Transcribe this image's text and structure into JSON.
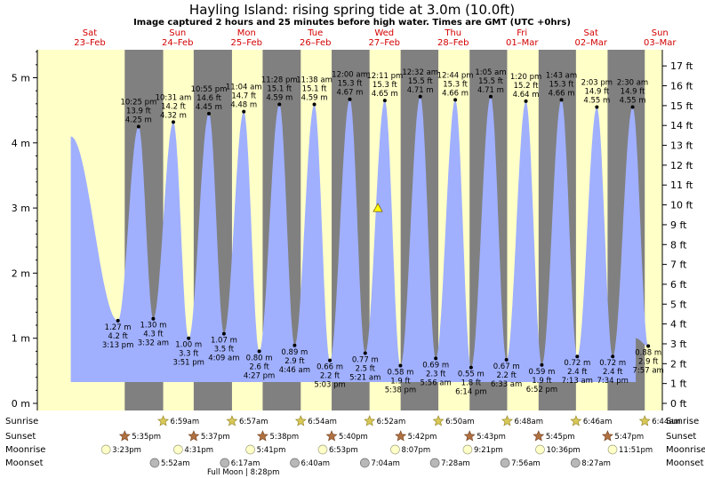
{
  "chart_data": {
    "type": "area",
    "title": "Hayling Island: rising  spring tide at 3.0m (10.0ft)",
    "subtitle": "Image captured 2 hours and 25 minutes before high water. Times are GMT (UTC +0hrs)",
    "ylabel_left_ticks": [
      "0 m",
      "1 m",
      "2 m",
      "3 m",
      "4 m",
      "5 m"
    ],
    "ylabel_right_ticks": [
      "0 ft",
      "1 ft",
      "2 ft",
      "3 ft",
      "4 ft",
      "5 ft",
      "6 ft",
      "7 ft",
      "8 ft",
      "9 ft",
      "10 ft",
      "11 ft",
      "12 ft",
      "13 ft",
      "14 ft",
      "15 ft",
      "16 ft",
      "17 ft"
    ],
    "ylim_m": [
      -0.05,
      5.45
    ],
    "days": [
      {
        "dow": "Sat",
        "date": "23–Feb"
      },
      {
        "dow": "Sun",
        "date": "24–Feb"
      },
      {
        "dow": "Mon",
        "date": "25–Feb"
      },
      {
        "dow": "Tue",
        "date": "26–Feb"
      },
      {
        "dow": "Wed",
        "date": "27–Feb"
      },
      {
        "dow": "Thu",
        "date": "28–Feb"
      },
      {
        "dow": "Fri",
        "date": "01–Mar"
      },
      {
        "dow": "Sat",
        "date": "02–Mar"
      },
      {
        "dow": "Sun",
        "date": "03–Mar"
      }
    ],
    "start_height_m": 4.1,
    "end_height_m": 1.0,
    "tides": [
      {
        "type": "low",
        "day": 0,
        "time": "3:13 pm",
        "h": 1.27,
        "m": "1.27 m",
        "ft": "4.2 ft"
      },
      {
        "type": "high",
        "day": 0,
        "time": "10:25 pm",
        "h": 4.25,
        "m": "4.25 m",
        "ft": "13.9 ft"
      },
      {
        "type": "low",
        "day": 1,
        "time": "3:32 am",
        "h": 1.3,
        "m": "1.30 m",
        "ft": "4.3 ft"
      },
      {
        "type": "high",
        "day": 1,
        "time": "10:31 am",
        "h": 4.32,
        "m": "4.32 m",
        "ft": "14.2 ft"
      },
      {
        "type": "low",
        "day": 1,
        "time": "3:51 pm",
        "h": 1.0,
        "m": "1.00 m",
        "ft": "3.3 ft"
      },
      {
        "type": "high",
        "day": 1,
        "time": "10:55 pm",
        "h": 4.45,
        "m": "4.45 m",
        "ft": "14.6 ft"
      },
      {
        "type": "low",
        "day": 2,
        "time": "4:09 am",
        "h": 1.07,
        "m": "1.07 m",
        "ft": "3.5 ft"
      },
      {
        "type": "high",
        "day": 2,
        "time": "11:04 am",
        "h": 4.48,
        "m": "4.48 m",
        "ft": "14.7 ft"
      },
      {
        "type": "low",
        "day": 2,
        "time": "4:27 pm",
        "h": 0.8,
        "m": "0.80 m",
        "ft": "2.6 ft"
      },
      {
        "type": "high",
        "day": 2,
        "time": "11:28 pm",
        "h": 4.59,
        "m": "4.59 m",
        "ft": "15.1 ft"
      },
      {
        "type": "low",
        "day": 3,
        "time": "4:46 am",
        "h": 0.89,
        "m": "0.89 m",
        "ft": "2.9 ft"
      },
      {
        "type": "high",
        "day": 3,
        "time": "11:38 am",
        "h": 4.59,
        "m": "4.59 m",
        "ft": "15.1 ft"
      },
      {
        "type": "low",
        "day": 3,
        "time": "5:03 pm",
        "h": 0.66,
        "m": "0.66 m",
        "ft": "2.2 ft"
      },
      {
        "type": "high",
        "day": 4,
        "time": "12:00 am",
        "h": 4.67,
        "m": "4.67 m",
        "ft": "15.3 ft"
      },
      {
        "type": "low",
        "day": 4,
        "time": "5:21 am",
        "h": 0.77,
        "m": "0.77 m",
        "ft": "2.5 ft"
      },
      {
        "type": "high",
        "day": 4,
        "time": "12:11 pm",
        "h": 4.65,
        "m": "4.65 m",
        "ft": "15.3 ft"
      },
      {
        "type": "low",
        "day": 4,
        "time": "5:38 pm",
        "h": 0.58,
        "m": "0.58 m",
        "ft": "1.9 ft"
      },
      {
        "type": "high",
        "day": 5,
        "time": "12:32 am",
        "h": 4.71,
        "m": "4.71 m",
        "ft": "15.5 ft"
      },
      {
        "type": "low",
        "day": 5,
        "time": "5:56 am",
        "h": 0.69,
        "m": "0.69 m",
        "ft": "2.3 ft"
      },
      {
        "type": "high",
        "day": 5,
        "time": "12:44 pm",
        "h": 4.66,
        "m": "4.66 m",
        "ft": "15.3 ft"
      },
      {
        "type": "low",
        "day": 5,
        "time": "6:14 pm",
        "h": 0.55,
        "m": "0.55 m",
        "ft": "1.8 ft"
      },
      {
        "type": "high",
        "day": 6,
        "time": "1:05 am",
        "h": 4.71,
        "m": "4.71 m",
        "ft": "15.5 ft"
      },
      {
        "type": "low",
        "day": 6,
        "time": "6:33 am",
        "h": 0.67,
        "m": "0.67 m",
        "ft": "2.2 ft"
      },
      {
        "type": "high",
        "day": 6,
        "time": "1:20 pm",
        "h": 4.64,
        "m": "4.64 m",
        "ft": "15.2 ft"
      },
      {
        "type": "low",
        "day": 6,
        "time": "6:52 pm",
        "h": 0.59,
        "m": "0.59 m",
        "ft": "1.9 ft"
      },
      {
        "type": "high",
        "day": 7,
        "time": "1:43 am",
        "h": 4.66,
        "m": "4.66 m",
        "ft": "15.3 ft"
      },
      {
        "type": "low",
        "day": 7,
        "time": "7:13 am",
        "h": 0.72,
        "m": "0.72 m",
        "ft": "2.4 ft"
      },
      {
        "type": "high",
        "day": 7,
        "time": "2:03 pm",
        "h": 4.55,
        "m": "4.55 m",
        "ft": "14.9 ft"
      },
      {
        "type": "low",
        "day": 7,
        "time": "7:34 pm",
        "h": 0.72,
        "m": "0.72 m",
        "ft": "2.4 ft"
      },
      {
        "type": "high",
        "day": 8,
        "time": "2:30 am",
        "h": 4.55,
        "m": "4.55 m",
        "ft": "14.9 ft"
      },
      {
        "type": "low",
        "day": 8,
        "time": "7:57 am",
        "h": 0.88,
        "m": "0.88 m",
        "ft": "2.9 ft"
      }
    ],
    "current_marker": {
      "day": 4,
      "time": "9:46 am",
      "h": 3.0
    },
    "row_labels": [
      "Sunrise",
      "Sunset",
      "Moonrise",
      "Moonset"
    ],
    "sunrise": [
      {
        "day": 1,
        "time": "6:59am"
      },
      {
        "day": 2,
        "time": "6:57am"
      },
      {
        "day": 3,
        "time": "6:54am"
      },
      {
        "day": 4,
        "time": "6:52am"
      },
      {
        "day": 5,
        "time": "6:50am"
      },
      {
        "day": 6,
        "time": "6:48am"
      },
      {
        "day": 7,
        "time": "6:46am"
      },
      {
        "day": 8,
        "time": "6:44am"
      }
    ],
    "sunset": [
      {
        "day": 0,
        "time": "5:35pm"
      },
      {
        "day": 1,
        "time": "5:37pm"
      },
      {
        "day": 2,
        "time": "5:38pm"
      },
      {
        "day": 3,
        "time": "5:40pm"
      },
      {
        "day": 4,
        "time": "5:42pm"
      },
      {
        "day": 5,
        "time": "5:43pm"
      },
      {
        "day": 6,
        "time": "5:45pm"
      },
      {
        "day": 7,
        "time": "5:47pm"
      }
    ],
    "moonrise": [
      {
        "day": 0,
        "time": "3:23pm"
      },
      {
        "day": 1,
        "time": "4:31pm"
      },
      {
        "day": 2,
        "time": "5:41pm"
      },
      {
        "day": 3,
        "time": "6:53pm"
      },
      {
        "day": 4,
        "time": "8:07pm"
      },
      {
        "day": 5,
        "time": "9:21pm"
      },
      {
        "day": 6,
        "time": "10:36pm"
      },
      {
        "day": 7,
        "time": "11:51pm"
      }
    ],
    "moonset": [
      {
        "day": 1,
        "time": "5:52am"
      },
      {
        "day": 2,
        "time": "6:17am"
      },
      {
        "day": 3,
        "time": "6:40am"
      },
      {
        "day": 4,
        "time": "7:04am"
      },
      {
        "day": 5,
        "time": "7:28am"
      },
      {
        "day": 6,
        "time": "7:56am"
      },
      {
        "day": 7,
        "time": "8:27am"
      }
    ],
    "moon_phase_note": {
      "day": 2,
      "text": "Full Moon | 8:28pm"
    },
    "colors": {
      "day_bg": "#ffffc8",
      "night_bg": "#808080",
      "tide_fill": "#a0b0ff",
      "day_label": "#d40000",
      "marker": "#ffff00",
      "sun_icon": "#d4c050",
      "moon_icon": "#ffffc8"
    }
  }
}
